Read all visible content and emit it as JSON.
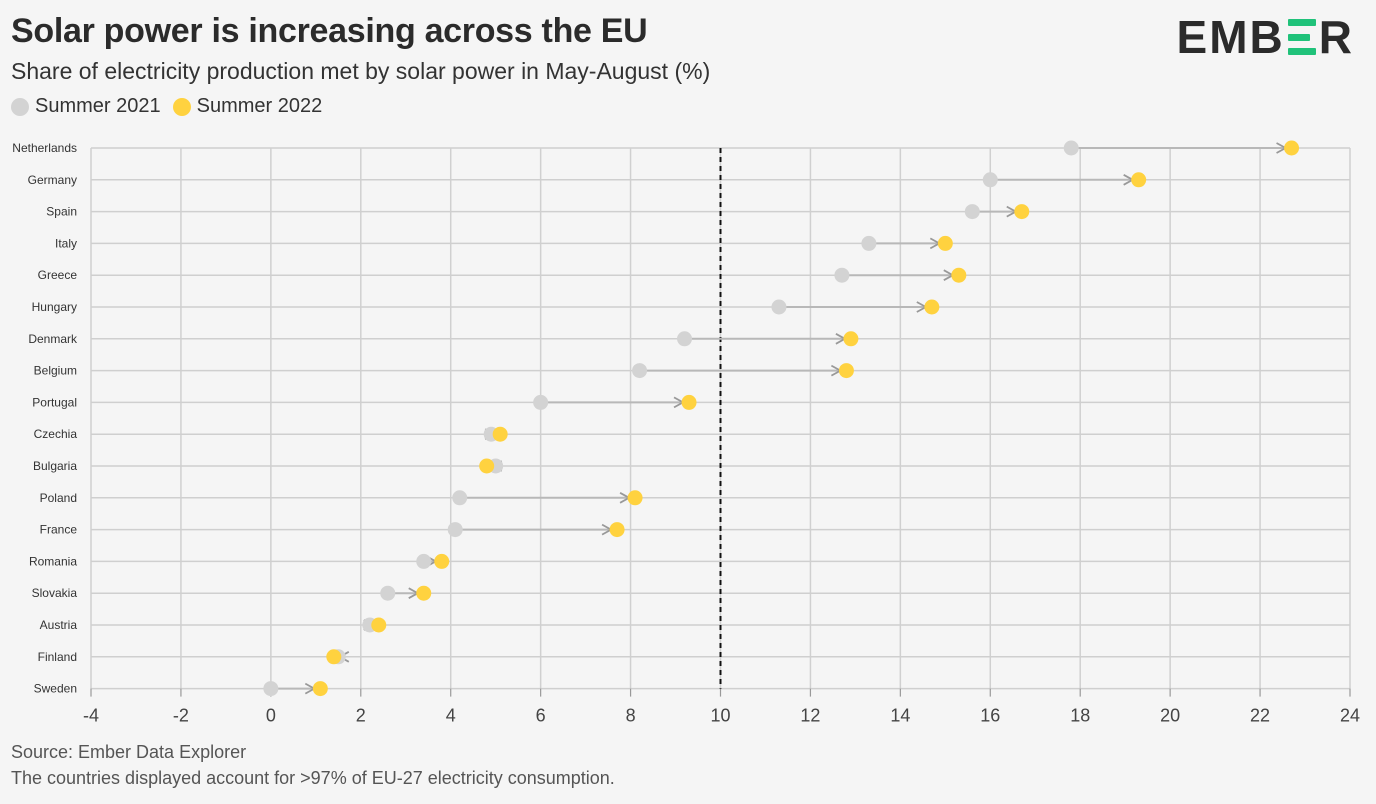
{
  "header": {
    "title": "Solar power is increasing across the EU",
    "subtitle": "Share of electricity production met by solar power in May-August (%)",
    "logo_text": "EMBER"
  },
  "footer": {
    "source": "Source: Ember Data Explorer",
    "note": "The countries displayed account for >97% of EU-27 electricity consumption."
  },
  "colors": {
    "series_2021": "#d3d3d3",
    "series_2022": "#ffd23f",
    "connector": "#b8b8b8",
    "brand_green": "#20c27a"
  },
  "chart_data": {
    "type": "dumbbell",
    "title": "Solar power is increasing across the EU",
    "subtitle": "Share of electricity production met by solar power in May-August (%)",
    "xlim": [
      -4,
      24
    ],
    "xticks": [
      -4,
      -2,
      0,
      2,
      4,
      6,
      8,
      10,
      12,
      14,
      16,
      18,
      20,
      22,
      24
    ],
    "reference_line": 10,
    "grid": true,
    "legend_position": "top-left",
    "categories": [
      "Netherlands",
      "Germany",
      "Spain",
      "Italy",
      "Greece",
      "Hungary",
      "Denmark",
      "Belgium",
      "Portugal",
      "Czechia",
      "Bulgaria",
      "Poland",
      "France",
      "Romania",
      "Slovakia",
      "Austria",
      "Finland",
      "Sweden"
    ],
    "series": [
      {
        "name": "Summer 2021",
        "values": [
          17.8,
          16.0,
          15.6,
          13.3,
          12.7,
          11.3,
          9.2,
          8.2,
          6.0,
          4.9,
          5.0,
          4.2,
          4.1,
          3.4,
          2.6,
          2.2,
          1.5,
          0.0
        ]
      },
      {
        "name": "Summer 2022",
        "values": [
          22.7,
          19.3,
          16.7,
          15.0,
          15.3,
          14.7,
          12.9,
          12.8,
          9.3,
          5.1,
          4.8,
          8.1,
          7.7,
          3.8,
          3.4,
          2.4,
          1.4,
          1.1
        ]
      }
    ]
  }
}
